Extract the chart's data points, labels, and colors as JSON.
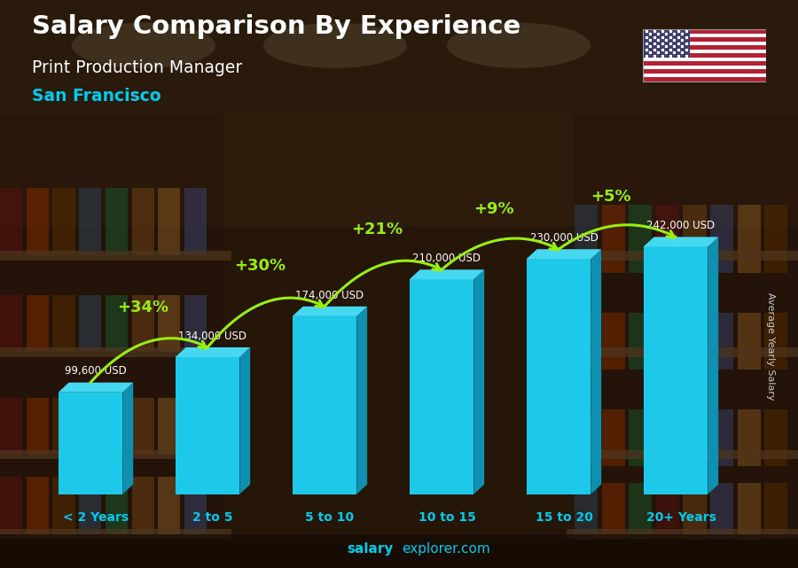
{
  "categories": [
    "< 2 Years",
    "2 to 5",
    "5 to 10",
    "10 to 15",
    "15 to 20",
    "20+ Years"
  ],
  "values": [
    99600,
    134000,
    174000,
    210000,
    230000,
    242000
  ],
  "value_labels": [
    "99,600 USD",
    "134,000 USD",
    "174,000 USD",
    "210,000 USD",
    "230,000 USD",
    "242,000 USD"
  ],
  "pct_changes": [
    "+34%",
    "+30%",
    "+21%",
    "+9%",
    "+5%"
  ],
  "title_line1": "Salary Comparison By Experience",
  "title_line2": "Print Production Manager",
  "title_line3": "San Francisco",
  "ylabel": "Average Yearly Salary",
  "watermark_bold": "salary",
  "watermark_rest": "explorer.com",
  "bar_face_color": "#1ec8e8",
  "bar_side_color": "#1090b0",
  "bar_top_color": "#45d8f0",
  "bg_color": "#2a1a0a",
  "title1_color": "#ffffff",
  "title2_color": "#ffffff",
  "title3_color": "#00ccee",
  "pct_color": "#99ee11",
  "value_label_color": "#ffffff",
  "cat_label_color": "#00ccee",
  "ylabel_color": "#cccccc",
  "watermark_color": "#00ccee",
  "ylim": [
    0,
    300000
  ],
  "figsize": [
    9.0,
    6.41
  ]
}
